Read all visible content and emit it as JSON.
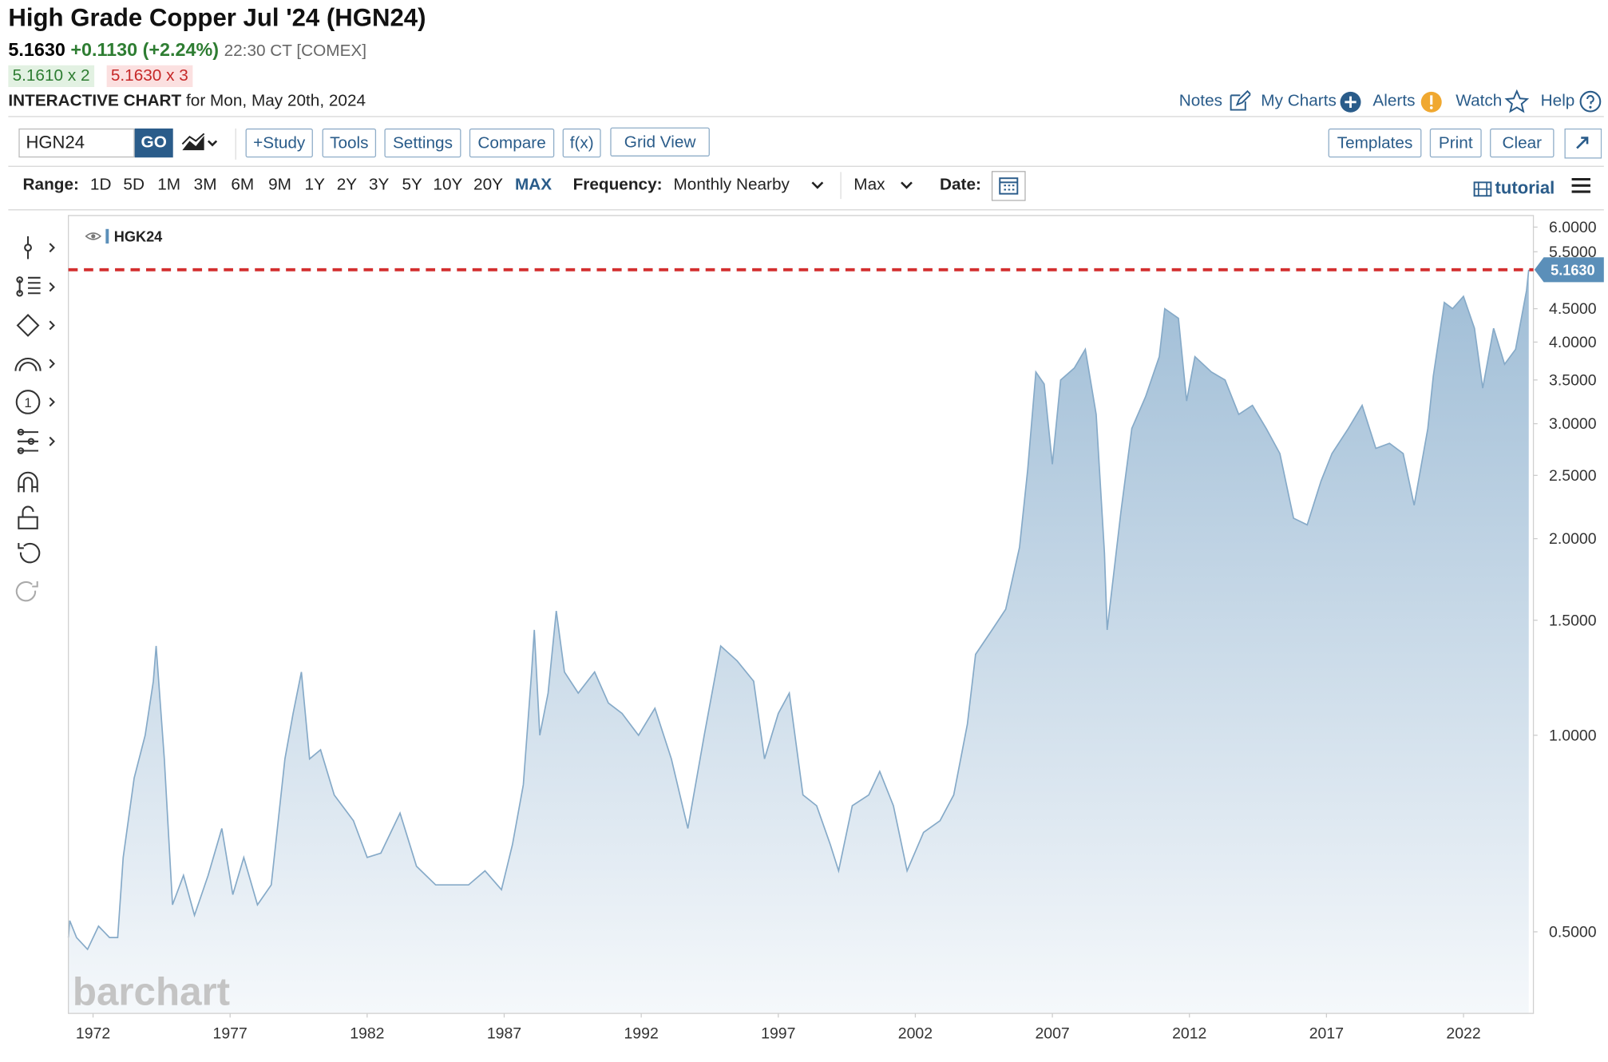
{
  "header": {
    "title": "High Grade Copper Jul '24 (HGN24)",
    "last": "5.1630",
    "change": "+0.1130 (+2.24%)",
    "time": "22:30 CT [COMEX]",
    "bid": "5.1610 x 2",
    "ask": "5.1630 x 3",
    "chart_label": "INTERACTIVE CHART",
    "chart_date": "for Mon, May 20th, 2024"
  },
  "nav": {
    "links": [
      "Notes",
      "My Charts",
      "Alerts",
      "Watch",
      "Help"
    ]
  },
  "toolbar": {
    "symbol": "HGN24",
    "go": "GO",
    "buttons": [
      "+Study",
      "Tools",
      "Settings",
      "Compare",
      "f(x)",
      "Grid View"
    ],
    "right_buttons": [
      "Templates",
      "Print",
      "Clear"
    ]
  },
  "range_bar": {
    "range_label": "Range:",
    "ranges": [
      "1D",
      "5D",
      "1M",
      "3M",
      "6M",
      "9M",
      "1Y",
      "2Y",
      "3Y",
      "5Y",
      "10Y",
      "20Y",
      "MAX"
    ],
    "frequency_label": "Frequency:",
    "frequency": "Monthly Nearby",
    "period": "Max",
    "date_label": "Date:",
    "tutorial": "tutorial"
  },
  "watermark": "barchart",
  "chart_data": {
    "type": "area",
    "log_scale": true,
    "grid": false,
    "series": [
      {
        "name": "HGK24",
        "color": "#86aac8",
        "x": [
          1971.1,
          1971.15,
          1971.4,
          1971.8,
          1972.2,
          1972.6,
          1972.9,
          1973.1,
          1973.5,
          1973.9,
          1974.2,
          1974.3,
          1974.6,
          1974.9,
          1975.3,
          1975.7,
          1976.2,
          1976.7,
          1977.1,
          1977.5,
          1978.0,
          1978.5,
          1979.0,
          1979.3,
          1979.6,
          1979.9,
          1980.3,
          1980.8,
          1981.5,
          1982.0,
          1982.5,
          1983.2,
          1983.8,
          1984.5,
          1985.0,
          1985.7,
          1986.3,
          1986.9,
          1987.3,
          1987.7,
          1988.0,
          1988.1,
          1988.3,
          1988.6,
          1988.9,
          1989.2,
          1989.7,
          1990.3,
          1990.8,
          1991.3,
          1991.9,
          1992.5,
          1993.1,
          1993.7,
          1994.3,
          1994.9,
          1995.5,
          1996.1,
          1996.5,
          1997.0,
          1997.4,
          1997.9,
          1998.4,
          1998.9,
          1999.2,
          1999.7,
          2000.3,
          2000.7,
          2001.2,
          2001.7,
          2002.3,
          2002.9,
          2003.4,
          2003.9,
          2004.2,
          2004.8,
          2005.3,
          2005.8,
          2006.1,
          2006.4,
          2006.7,
          2007.0,
          2007.3,
          2007.8,
          2008.2,
          2008.6,
          2008.9,
          2009.0,
          2009.5,
          2009.9,
          2010.4,
          2010.9,
          2011.1,
          2011.6,
          2011.9,
          2012.2,
          2012.8,
          2013.3,
          2013.8,
          2014.3,
          2014.8,
          2015.3,
          2015.8,
          2016.3,
          2016.8,
          2017.2,
          2017.8,
          2018.3,
          2018.8,
          2019.3,
          2019.8,
          2020.2,
          2020.7,
          2020.9,
          2021.3,
          2021.6,
          2022.0,
          2022.4,
          2022.7,
          2023.1,
          2023.5,
          2023.9,
          2024.3,
          2024.38
        ],
        "values": [
          0.49,
          0.52,
          0.49,
          0.47,
          0.51,
          0.49,
          0.49,
          0.65,
          0.86,
          1.0,
          1.21,
          1.37,
          0.92,
          0.55,
          0.61,
          0.53,
          0.61,
          0.72,
          0.57,
          0.65,
          0.55,
          0.59,
          0.92,
          1.08,
          1.25,
          0.92,
          0.95,
          0.81,
          0.74,
          0.65,
          0.66,
          0.76,
          0.63,
          0.59,
          0.59,
          0.59,
          0.62,
          0.58,
          0.68,
          0.84,
          1.25,
          1.45,
          1.0,
          1.16,
          1.55,
          1.25,
          1.16,
          1.25,
          1.12,
          1.08,
          1.0,
          1.1,
          0.92,
          0.72,
          1.0,
          1.37,
          1.3,
          1.21,
          0.92,
          1.08,
          1.16,
          0.81,
          0.78,
          0.68,
          0.62,
          0.78,
          0.81,
          0.88,
          0.78,
          0.62,
          0.71,
          0.74,
          0.81,
          1.04,
          1.33,
          1.45,
          1.56,
          1.94,
          2.55,
          3.6,
          3.45,
          2.6,
          3.5,
          3.65,
          3.9,
          3.1,
          1.9,
          1.45,
          2.2,
          2.95,
          3.3,
          3.8,
          4.5,
          4.35,
          3.25,
          3.8,
          3.6,
          3.5,
          3.1,
          3.2,
          2.95,
          2.7,
          2.15,
          2.1,
          2.45,
          2.7,
          2.95,
          3.2,
          2.75,
          2.8,
          2.7,
          2.25,
          2.95,
          3.55,
          4.6,
          4.5,
          4.7,
          4.2,
          3.4,
          4.2,
          3.7,
          3.9,
          4.8,
          5.163
        ]
      }
    ],
    "xlim": [
      1971.1,
      2024.55
    ],
    "xticks": [
      1972,
      1977,
      1982,
      1987,
      1992,
      1997,
      2002,
      2007,
      2012,
      2017,
      2022
    ],
    "ylim": [
      0.375,
      6.25
    ],
    "yticks": [
      {
        "value": 0.5,
        "label": "0.5000"
      },
      {
        "value": 1.0,
        "label": "1.0000"
      },
      {
        "value": 1.5,
        "label": "1.5000"
      },
      {
        "value": 2.0,
        "label": "2.0000"
      },
      {
        "value": 2.5,
        "label": "2.5000"
      },
      {
        "value": 3.0,
        "label": "3.0000"
      },
      {
        "value": 3.5,
        "label": "3.5000"
      },
      {
        "value": 4.0,
        "label": "4.0000"
      },
      {
        "value": 4.5,
        "label": "4.5000"
      },
      {
        "value": 5.5,
        "label": "5.5000"
      },
      {
        "value": 6.0,
        "label": "6.0000"
      }
    ],
    "reference_line": {
      "value": 5.163,
      "label": "5.1630",
      "color": "#d32f2f",
      "label_color": "#5b8fb9"
    }
  }
}
